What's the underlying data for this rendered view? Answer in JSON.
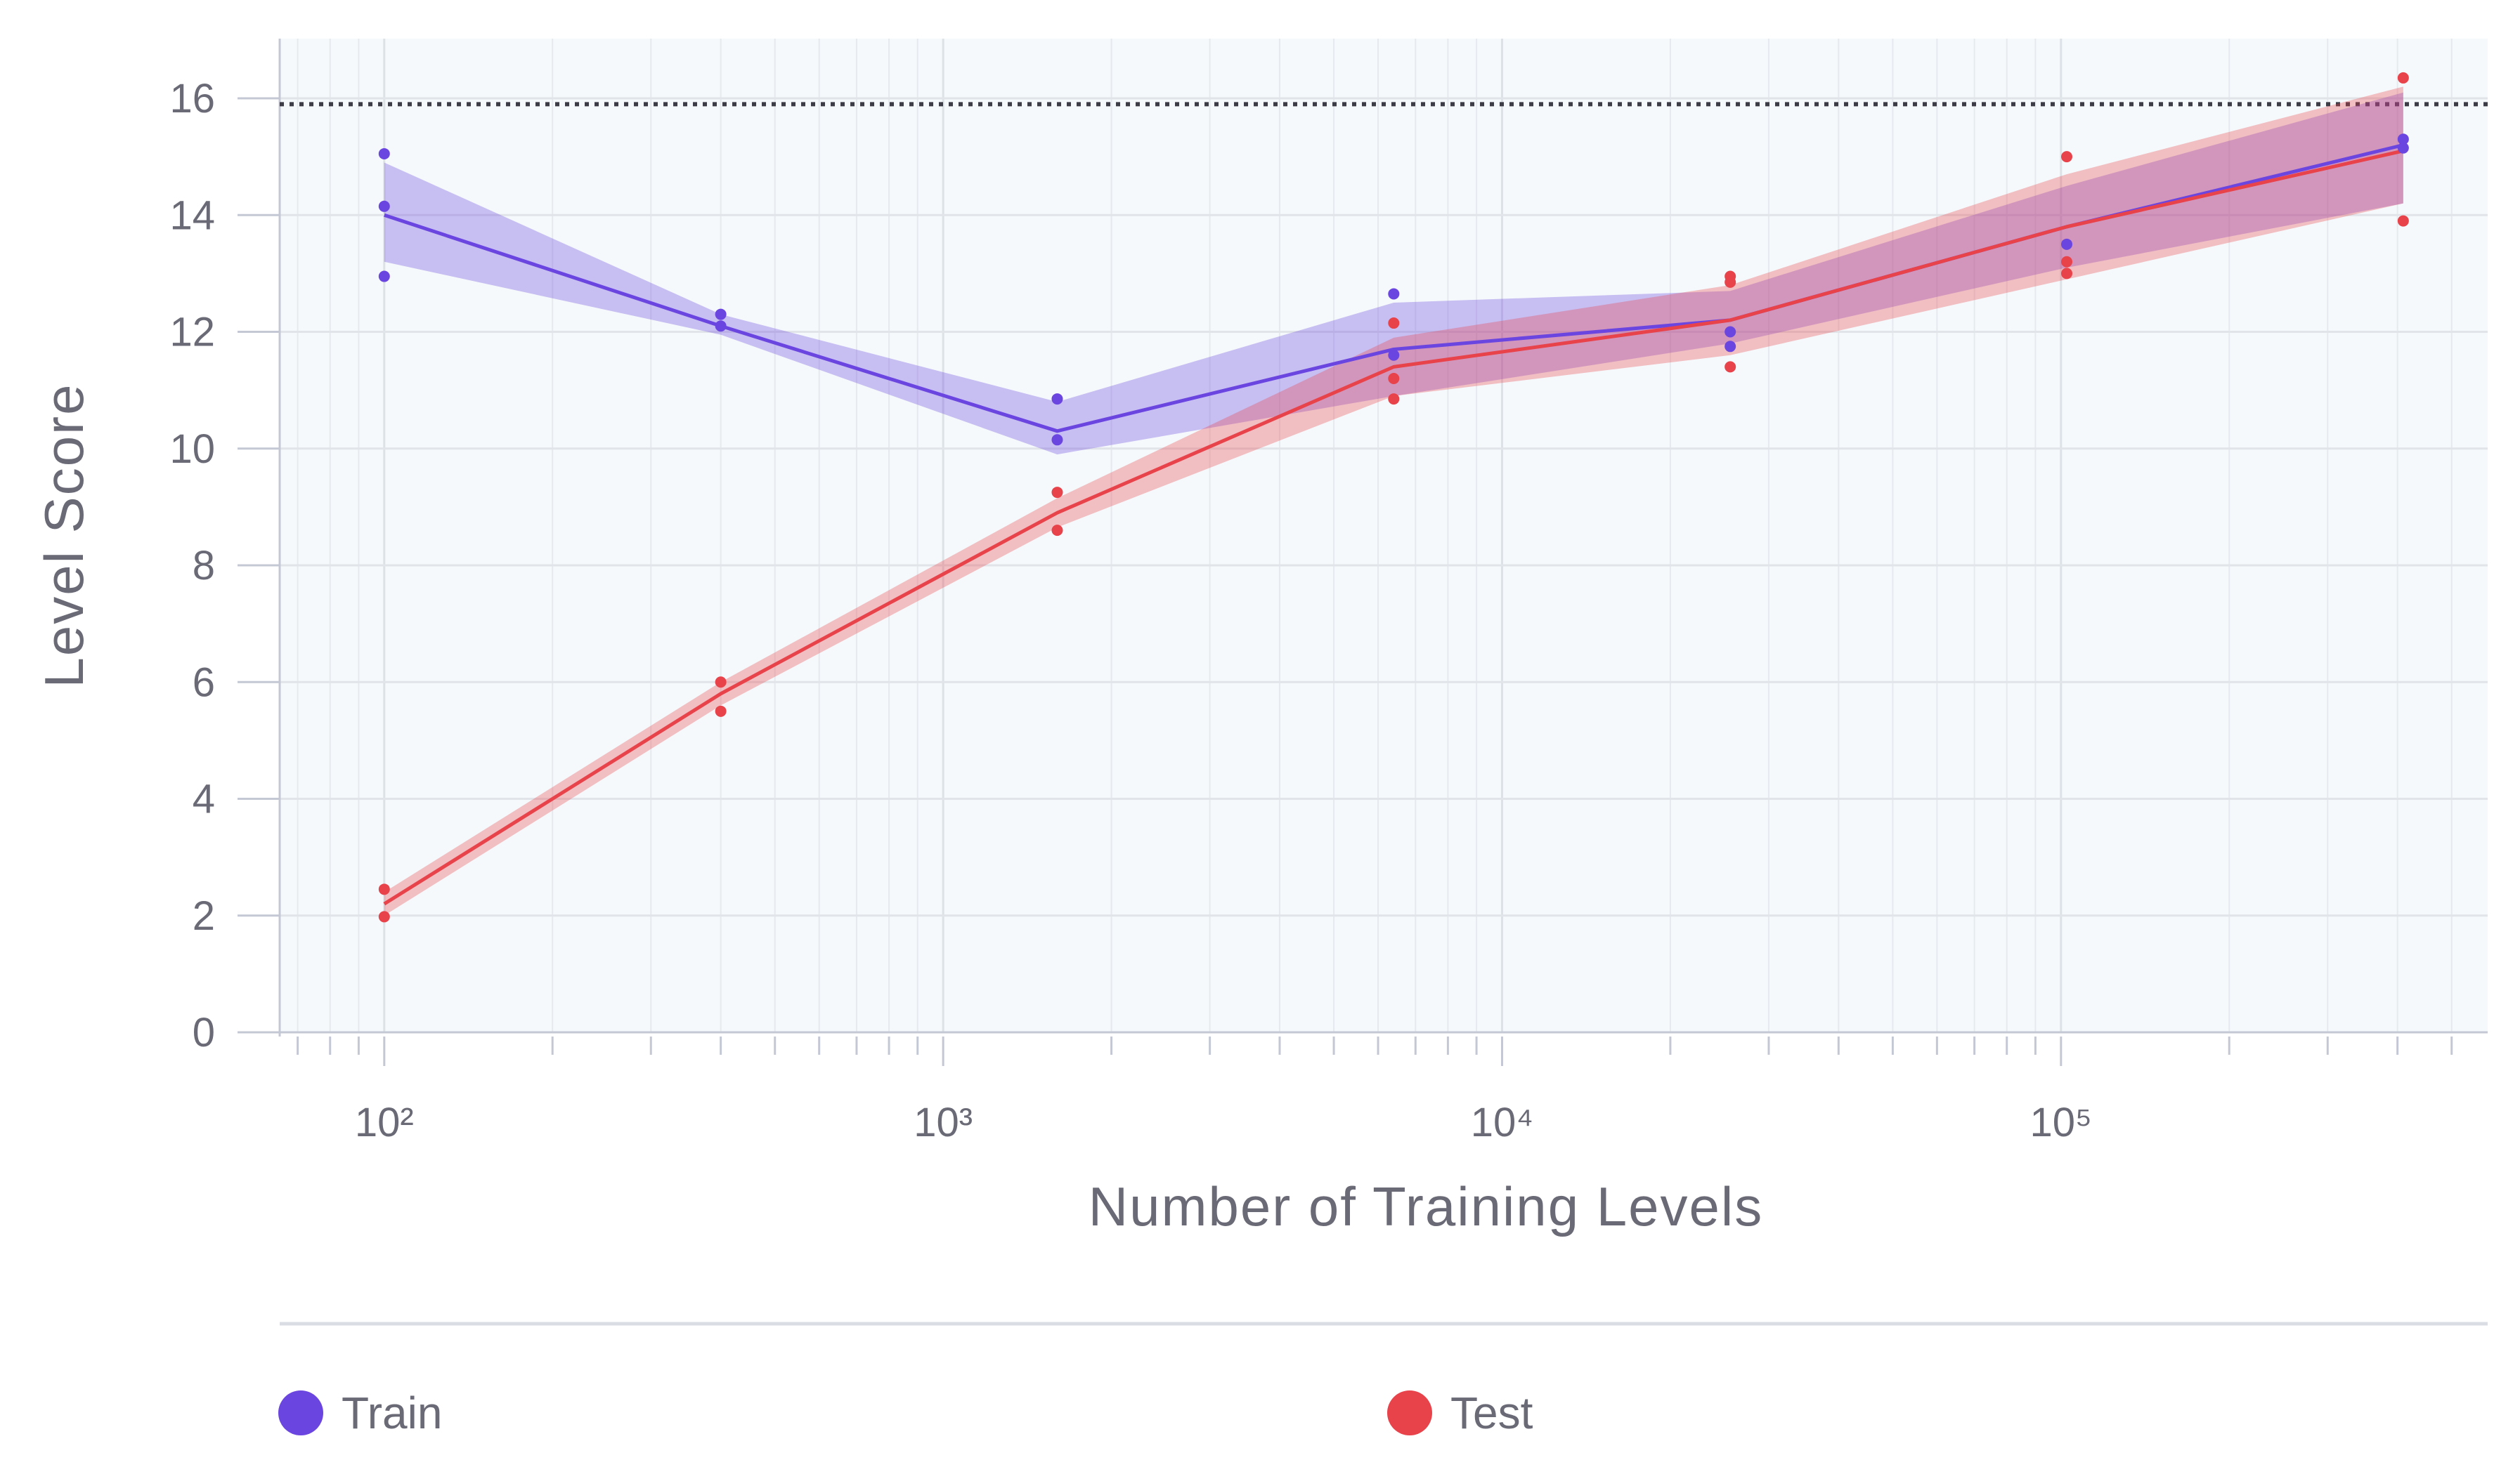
{
  "chart_data": {
    "type": "line",
    "xlabel": "Number of Training Levels",
    "ylabel": "Level Score",
    "xscale": "log",
    "xlim": [
      65,
      580000
    ],
    "ylim": [
      0,
      17
    ],
    "grid": true,
    "x_tick_labels": [
      "10²",
      "10³",
      "10⁴",
      "10⁵"
    ],
    "y_tick_labels": [
      "0",
      "2",
      "4",
      "6",
      "8",
      "10",
      "12",
      "14",
      "16"
    ],
    "x_ticks": [
      100,
      1000,
      10000,
      100000
    ],
    "y_ticks": [
      0,
      2,
      4,
      6,
      8,
      10,
      12,
      14,
      16
    ],
    "reference_line": {
      "y": 15.9,
      "style": "dotted"
    },
    "legend_position": "bottom",
    "x": [
      100,
      400,
      1600,
      6400,
      25600,
      102400,
      409600
    ],
    "series": [
      {
        "name": "Train",
        "color": "#6b45e0",
        "values": [
          14.0,
          12.1,
          10.3,
          11.7,
          12.2,
          13.8,
          15.2
        ],
        "band_low": [
          13.2,
          11.95,
          9.9,
          10.9,
          11.8,
          13.1,
          14.2
        ],
        "band_high": [
          14.9,
          12.3,
          10.8,
          12.5,
          12.7,
          14.5,
          16.1
        ],
        "points": [
          [
            100,
            15.05
          ],
          [
            100,
            14.15
          ],
          [
            100,
            12.95
          ],
          [
            400,
            12.3
          ],
          [
            400,
            12.1
          ],
          [
            1600,
            10.85
          ],
          [
            1600,
            10.15
          ],
          [
            6400,
            12.65
          ],
          [
            6400,
            11.6
          ],
          [
            25600,
            12.0
          ],
          [
            25600,
            11.75
          ],
          [
            102400,
            13.5
          ],
          [
            409600,
            15.3
          ],
          [
            409600,
            15.15
          ]
        ]
      },
      {
        "name": "Test",
        "color": "#e8424a",
        "values": [
          2.2,
          5.8,
          8.9,
          11.4,
          12.2,
          13.8,
          15.1
        ],
        "band_low": [
          2.0,
          5.6,
          8.65,
          10.9,
          11.6,
          12.9,
          14.2
        ],
        "band_high": [
          2.4,
          6.0,
          9.15,
          11.9,
          12.8,
          14.7,
          16.2
        ],
        "points": [
          [
            100,
            2.45
          ],
          [
            100,
            1.98
          ],
          [
            400,
            6.0
          ],
          [
            400,
            5.5
          ],
          [
            1600,
            9.25
          ],
          [
            1600,
            8.6
          ],
          [
            6400,
            12.15
          ],
          [
            6400,
            11.2
          ],
          [
            6400,
            10.85
          ],
          [
            25600,
            12.95
          ],
          [
            25600,
            12.85
          ],
          [
            25600,
            11.4
          ],
          [
            102400,
            15.0
          ],
          [
            102400,
            13.2
          ],
          [
            102400,
            13.0
          ],
          [
            409600,
            16.35
          ],
          [
            409600,
            13.9
          ]
        ]
      }
    ]
  }
}
